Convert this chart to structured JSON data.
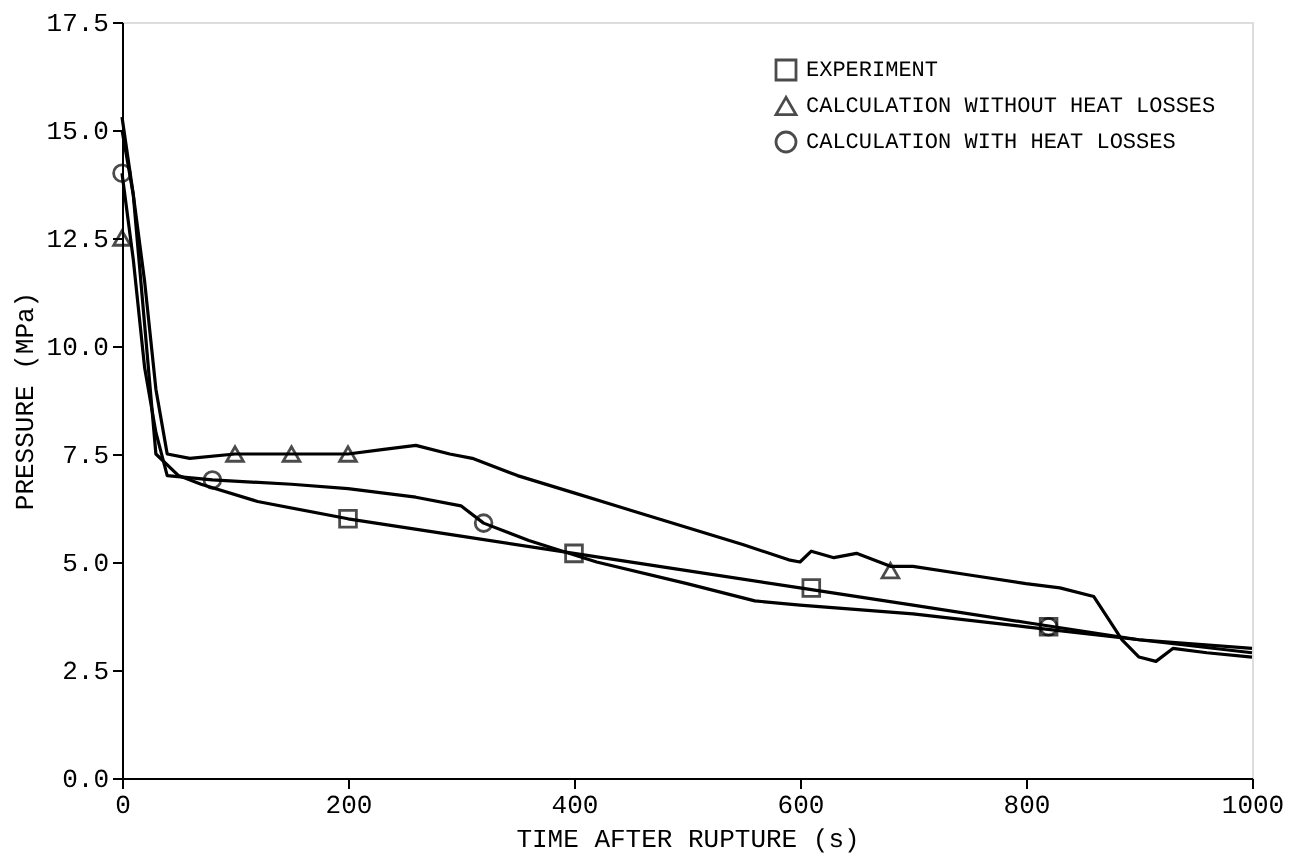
{
  "chart_data": {
    "type": "line",
    "xlabel": "TIME AFTER RUPTURE (s)",
    "ylabel": "PRESSURE (MPa)",
    "xlim": [
      0,
      1000
    ],
    "xticks": [
      0,
      200,
      400,
      600,
      800,
      1000
    ],
    "ylim": [
      0,
      17.5
    ],
    "yticks": [
      {
        "value": 0,
        "label": "0.0"
      },
      2.5,
      {
        "value": 5,
        "label": "5.0"
      },
      7.5,
      {
        "value": 10,
        "label": "10.0"
      },
      12.5,
      {
        "value": 15,
        "label": "15.0"
      },
      17.5
    ],
    "grid": false,
    "legend": "top right",
    "series": [
      {
        "marker": "none",
        "color": "#000000",
        "x": [
          0,
          10,
          20,
          30,
          50,
          70,
          120,
          200,
          300,
          400,
          500,
          600,
          700,
          800,
          900,
          1000
        ],
        "values": [
          15.0,
          13.5,
          10.5,
          7.5,
          7.0,
          6.8,
          6.4,
          6.0,
          5.6,
          5.2,
          4.8,
          4.4,
          4.0,
          3.6,
          3.2,
          2.9
        ]
      },
      {
        "marker": "none",
        "color": "#000000",
        "x": [
          0,
          10,
          20,
          30,
          40,
          60,
          100,
          150,
          200,
          230,
          260,
          290,
          310,
          350,
          400,
          450,
          500,
          550,
          590,
          600,
          610,
          630,
          650,
          680,
          700,
          750,
          800,
          830,
          860,
          870,
          885,
          900,
          915,
          930,
          960,
          1000
        ],
        "values": [
          15.3,
          13.5,
          11.5,
          9.0,
          7.5,
          7.4,
          7.5,
          7.5,
          7.5,
          7.6,
          7.7,
          7.5,
          7.4,
          7.0,
          6.6,
          6.2,
          5.8,
          5.4,
          5.05,
          5.0,
          5.25,
          5.1,
          5.2,
          4.9,
          4.9,
          4.7,
          4.5,
          4.4,
          4.2,
          3.8,
          3.2,
          2.8,
          2.7,
          3.0,
          2.9,
          2.8
        ]
      },
      {
        "marker": "none",
        "color": "#000000",
        "x": [
          0,
          10,
          20,
          30,
          40,
          80,
          150,
          200,
          260,
          300,
          320,
          360,
          420,
          500,
          560,
          600,
          700,
          800,
          900,
          1000
        ],
        "values": [
          14.0,
          12.0,
          9.5,
          8.0,
          7.0,
          6.9,
          6.8,
          6.7,
          6.5,
          6.3,
          5.9,
          5.5,
          5.0,
          4.5,
          4.1,
          4.0,
          3.8,
          3.5,
          3.2,
          3.0
        ]
      },
      {
        "type": "scatter",
        "name": "EXPERIMENT",
        "marker": "square",
        "color": "#000000",
        "x": [
          200,
          400,
          610,
          820
        ],
        "values": [
          6.0,
          5.2,
          4.4,
          3.5
        ]
      },
      {
        "type": "scatter",
        "name": "CALCULATION WITHOUT HEAT LOSSES",
        "marker": "triangle",
        "color": "#000000",
        "x": [
          0,
          100,
          150,
          200,
          680
        ],
        "values": [
          12.5,
          7.5,
          7.5,
          7.5,
          4.8
        ]
      },
      {
        "type": "scatter",
        "name": "CALCULATION WITH HEAT LOSSES",
        "marker": "circle",
        "color": "#000000",
        "x": [
          0,
          80,
          320,
          820
        ],
        "values": [
          14.0,
          6.9,
          5.9,
          3.5
        ]
      }
    ]
  }
}
